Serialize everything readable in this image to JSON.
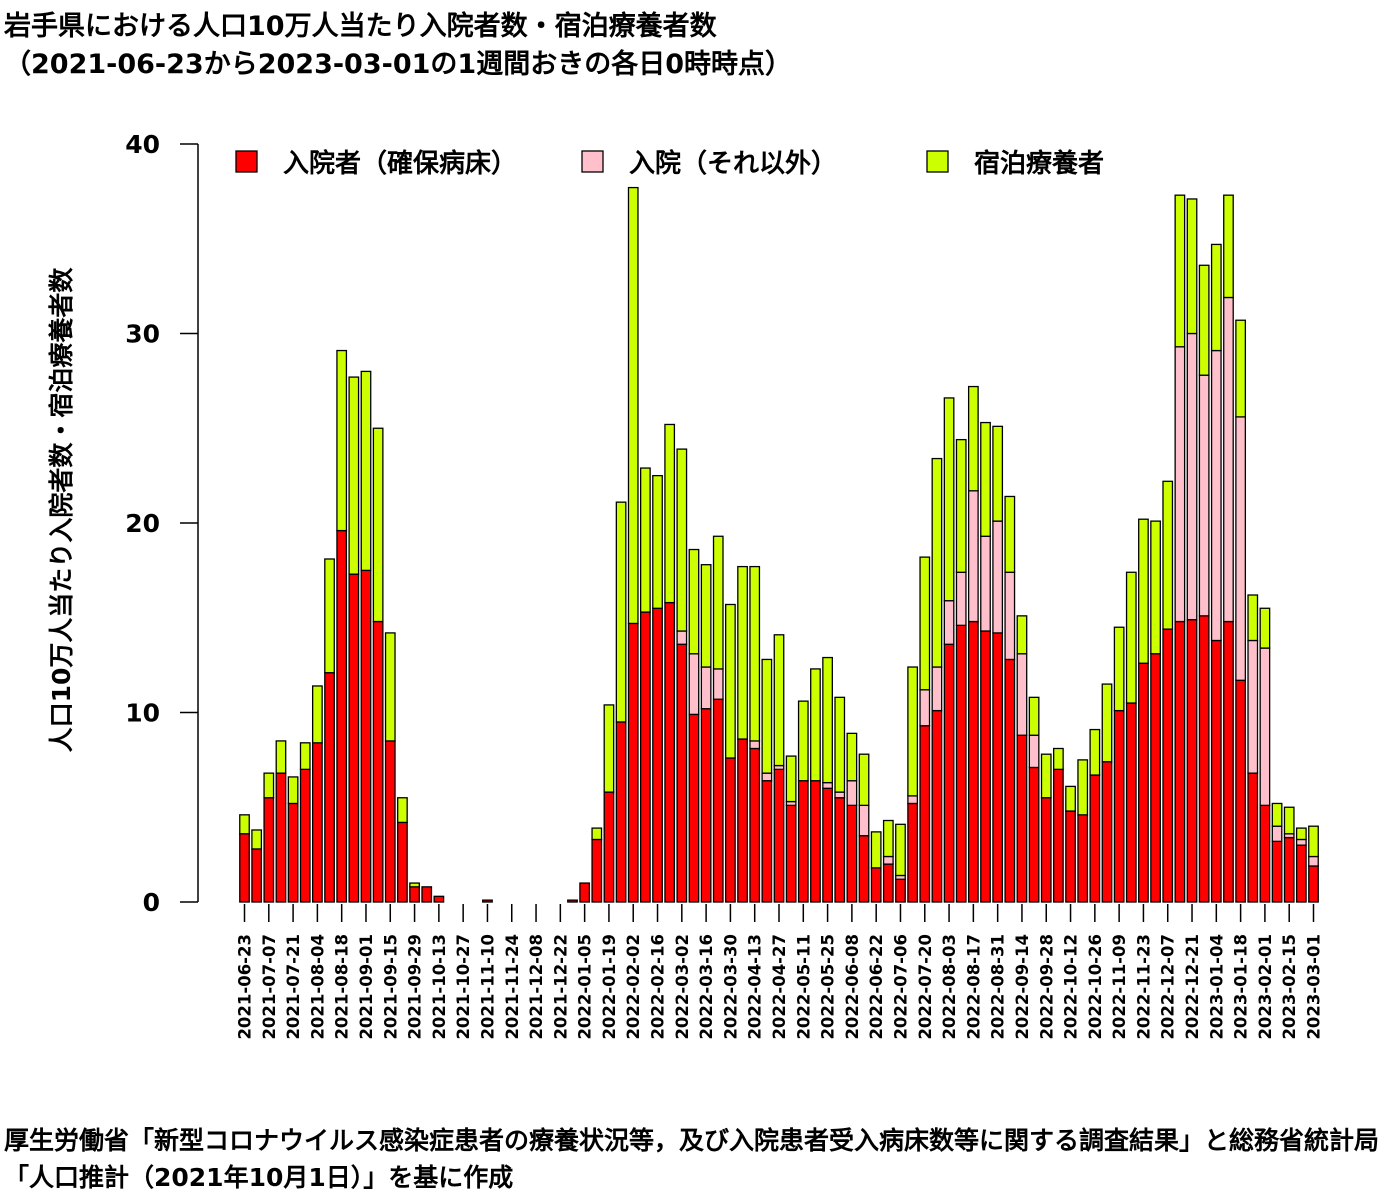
{
  "title_line1": "岩手県における人口10万人当たり入院者数・宿泊療養者数",
  "title_line2": "（2021-06-23から2023-03-01の1週間おきの各日0時時点）",
  "note": "厚生労働省「新型コロナウイルス感染症患者の療養状況等，及び入院患者受入病床数等に関する調査結果」と総務省統計局「人口推計（2021年10月1日）」を基に作成",
  "chart_data": {
    "type": "bar",
    "stacked": true,
    "ylabel": "人口10万人当たり入院者数・宿泊療養者数",
    "xlabel": "",
    "ylim": [
      0,
      40
    ],
    "yticks": [
      0,
      10,
      20,
      30,
      40
    ],
    "legend_position": "top",
    "x_tick_labels": [
      "2021-06-23",
      "2021-07-07",
      "2021-07-21",
      "2021-08-04",
      "2021-08-18",
      "2021-09-01",
      "2021-09-15",
      "2021-09-29",
      "2021-10-13",
      "2021-10-27",
      "2021-11-10",
      "2021-11-24",
      "2021-12-08",
      "2021-12-22",
      "2022-01-05",
      "2022-01-19",
      "2022-02-02",
      "2022-02-16",
      "2022-03-02",
      "2022-03-16",
      "2022-03-30",
      "2022-04-13",
      "2022-04-27",
      "2022-05-11",
      "2022-05-25",
      "2022-06-08",
      "2022-06-22",
      "2022-07-06",
      "2022-07-20",
      "2022-08-03",
      "2022-08-17",
      "2022-08-31",
      "2022-09-14",
      "2022-09-28",
      "2022-10-12",
      "2022-10-26",
      "2022-11-09",
      "2022-11-23",
      "2022-12-07",
      "2022-12-21",
      "2023-01-04",
      "2023-01-18",
      "2023-02-01",
      "2023-02-15",
      "2023-03-01"
    ],
    "categories": [
      "2021-06-23",
      "2021-06-30",
      "2021-07-07",
      "2021-07-14",
      "2021-07-21",
      "2021-07-28",
      "2021-08-04",
      "2021-08-11",
      "2021-08-18",
      "2021-08-25",
      "2021-09-01",
      "2021-09-08",
      "2021-09-15",
      "2021-09-22",
      "2021-09-29",
      "2021-10-06",
      "2021-10-13",
      "2021-10-20",
      "2021-10-27",
      "2021-11-03",
      "2021-11-10",
      "2021-11-17",
      "2021-11-24",
      "2021-12-01",
      "2021-12-08",
      "2021-12-15",
      "2021-12-22",
      "2021-12-29",
      "2022-01-05",
      "2022-01-12",
      "2022-01-19",
      "2022-01-26",
      "2022-02-02",
      "2022-02-09",
      "2022-02-16",
      "2022-02-23",
      "2022-03-02",
      "2022-03-09",
      "2022-03-16",
      "2022-03-23",
      "2022-03-30",
      "2022-04-06",
      "2022-04-13",
      "2022-04-20",
      "2022-04-27",
      "2022-05-04",
      "2022-05-11",
      "2022-05-18",
      "2022-05-25",
      "2022-06-01",
      "2022-06-08",
      "2022-06-15",
      "2022-06-22",
      "2022-06-29",
      "2022-07-06",
      "2022-07-13",
      "2022-07-20",
      "2022-07-27",
      "2022-08-03",
      "2022-08-10",
      "2022-08-17",
      "2022-08-24",
      "2022-08-31",
      "2022-09-07",
      "2022-09-14",
      "2022-09-21",
      "2022-09-28",
      "2022-10-05",
      "2022-10-12",
      "2022-10-19",
      "2022-10-26",
      "2022-11-02",
      "2022-11-09",
      "2022-11-16",
      "2022-11-23",
      "2022-11-30",
      "2022-12-07",
      "2022-12-14",
      "2022-12-21",
      "2022-12-28",
      "2023-01-04",
      "2023-01-11",
      "2023-01-18",
      "2023-01-25",
      "2023-02-01",
      "2023-02-08",
      "2023-02-15",
      "2023-02-22",
      "2023-03-01"
    ],
    "series": [
      {
        "name": "入院者（確保病床）",
        "color": "#ff0000",
        "values": [
          3.6,
          2.8,
          5.5,
          6.8,
          5.2,
          7.0,
          8.4,
          12.1,
          19.6,
          17.3,
          17.5,
          14.8,
          8.5,
          4.2,
          0.8,
          0.8,
          0.3,
          0,
          0,
          0,
          0.1,
          0,
          0,
          0,
          0,
          0,
          0,
          0.1,
          1.0,
          3.3,
          5.8,
          9.5,
          14.7,
          15.3,
          15.5,
          15.8,
          13.6,
          9.9,
          10.2,
          10.7,
          7.6,
          8.6,
          8.1,
          6.4,
          7.0,
          5.1,
          6.4,
          6.4,
          6.0,
          5.5,
          5.1,
          3.5,
          1.8,
          2.0,
          1.2,
          5.2,
          9.3,
          10.1,
          13.6,
          14.6,
          14.8,
          14.3,
          14.2,
          12.8,
          8.8,
          7.1,
          5.5,
          7.0,
          4.8,
          4.6,
          6.7,
          7.4,
          10.1,
          10.5,
          12.6,
          13.1,
          14.4,
          14.8,
          14.9,
          15.1,
          13.8,
          14.8,
          11.7,
          6.8,
          5.1,
          3.2,
          3.4,
          3.0,
          1.9
        ]
      },
      {
        "name": "入院（それ以外）",
        "color": "#ffc0cb",
        "values": [
          0,
          0,
          0,
          0,
          0,
          0,
          0,
          0,
          0,
          0,
          0,
          0,
          0,
          0,
          0,
          0,
          0,
          0,
          0,
          0,
          0,
          0,
          0,
          0,
          0,
          0,
          0,
          0,
          0,
          0,
          0,
          0,
          0,
          0,
          0,
          0,
          0.7,
          3.2,
          2.2,
          1.6,
          0,
          0,
          0.4,
          0.4,
          0.2,
          0.2,
          0,
          0,
          0.3,
          0.3,
          1.3,
          1.6,
          0,
          0.4,
          0.2,
          0.4,
          1.9,
          2.3,
          2.3,
          2.8,
          6.9,
          5.0,
          5.9,
          4.6,
          4.3,
          1.7,
          0,
          0,
          0,
          0,
          0,
          0,
          0,
          0,
          0,
          0,
          0,
          14.5,
          15.1,
          12.7,
          15.3,
          17.1,
          13.9,
          7.0,
          8.3,
          0.8,
          0.2,
          0.3,
          0.5
        ]
      },
      {
        "name": "宿泊療養者",
        "color": "#ccff00",
        "values": [
          1.0,
          1.0,
          1.3,
          1.7,
          1.4,
          1.4,
          3.0,
          6.0,
          9.5,
          10.4,
          10.5,
          10.2,
          5.7,
          1.3,
          0.2,
          0,
          0,
          0,
          0,
          0,
          0,
          0,
          0,
          0,
          0,
          0,
          0,
          0,
          0,
          0.6,
          4.6,
          11.6,
          23.0,
          7.6,
          7.0,
          9.4,
          9.6,
          5.5,
          5.4,
          7.0,
          8.1,
          9.1,
          9.2,
          6.0,
          6.9,
          2.4,
          4.2,
          5.9,
          6.6,
          5.0,
          2.5,
          2.7,
          1.9,
          1.9,
          2.7,
          6.8,
          7.0,
          11.0,
          10.7,
          7.0,
          5.5,
          6.0,
          5.0,
          4.0,
          2.0,
          2.0,
          2.3,
          1.1,
          1.3,
          2.9,
          2.4,
          4.1,
          4.4,
          6.9,
          7.6,
          7.0,
          7.8,
          8.0,
          7.1,
          5.8,
          5.6,
          5.4,
          5.1,
          2.4,
          2.1,
          1.2,
          1.4,
          0.6,
          1.6
        ]
      }
    ]
  }
}
